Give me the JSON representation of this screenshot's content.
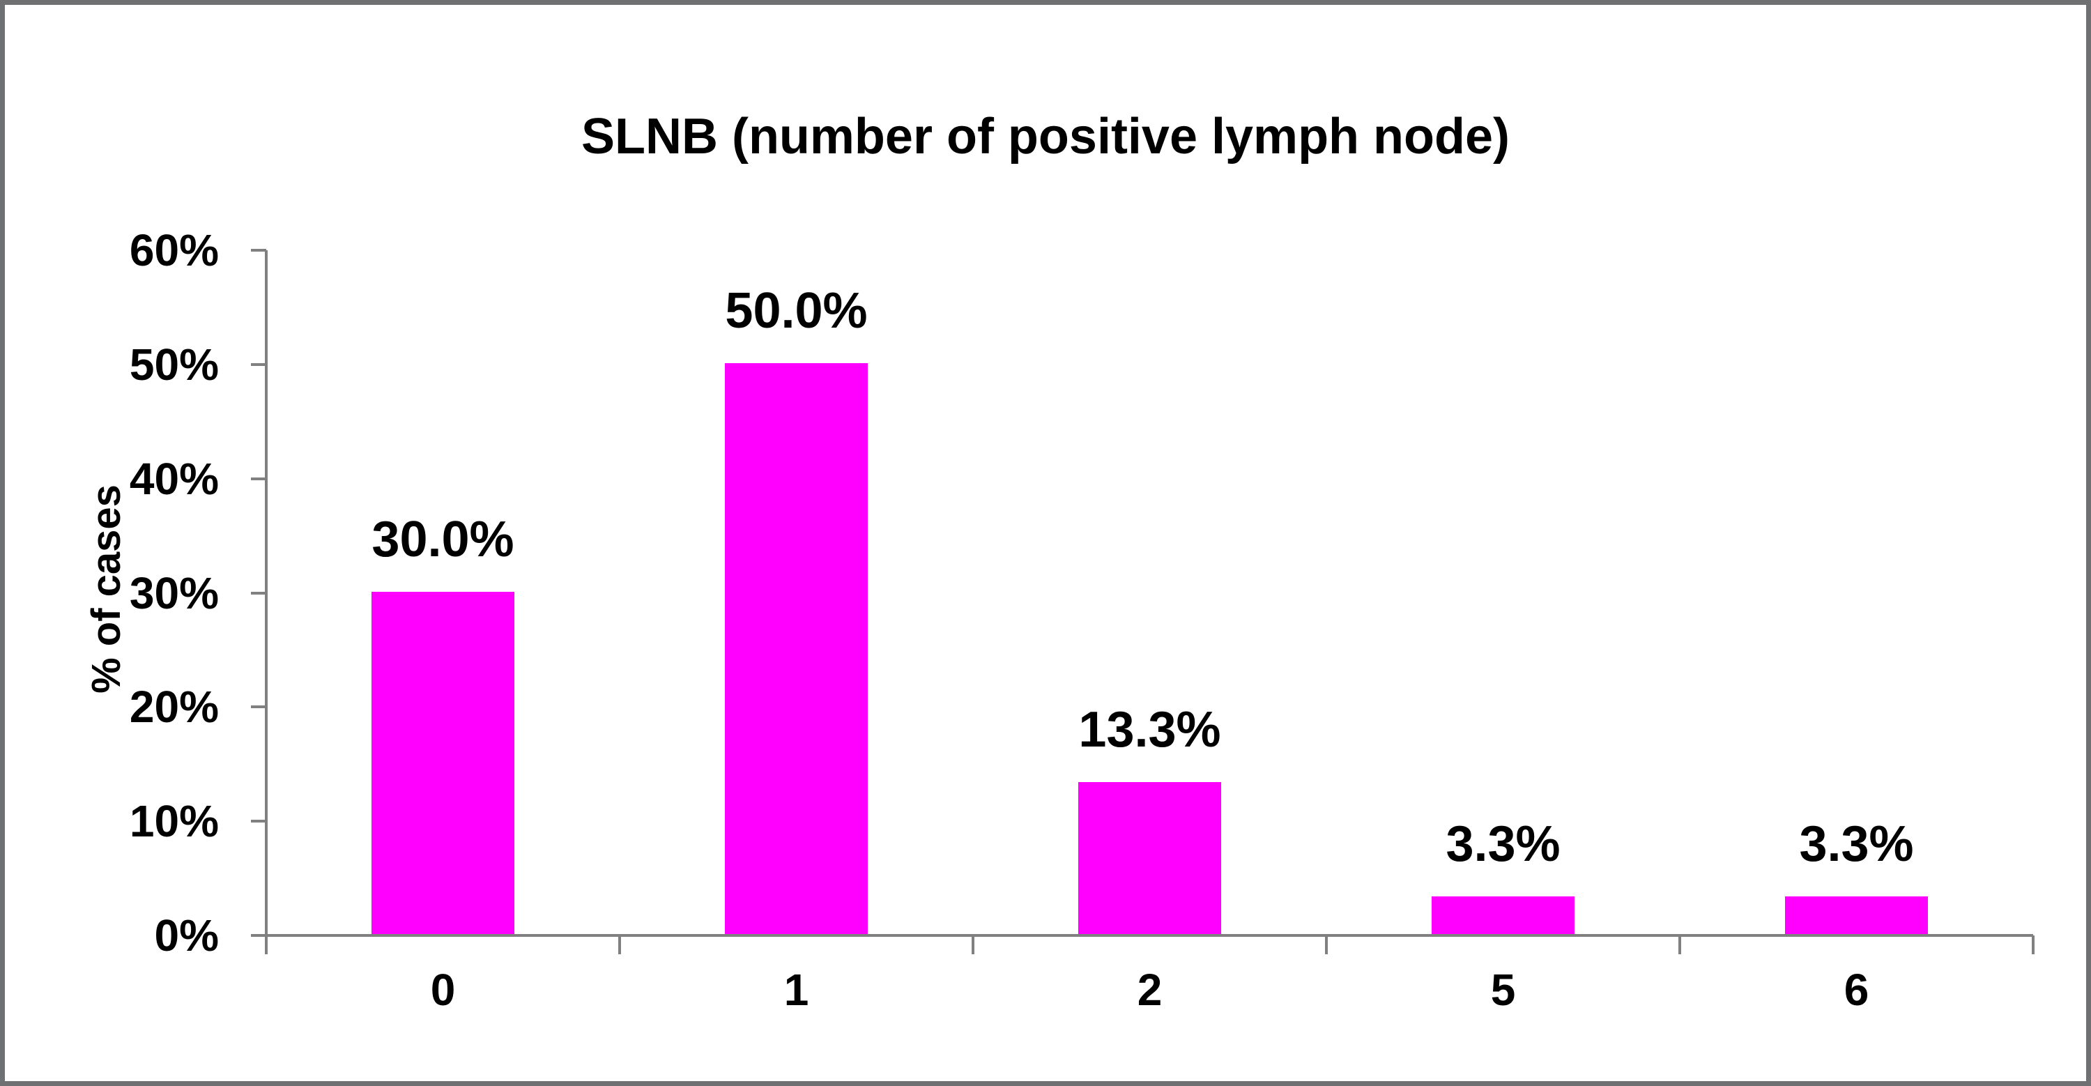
{
  "chart_data": {
    "type": "bar",
    "title": "SLNB (number of positive lymph node)",
    "xlabel": "",
    "ylabel": "% of cases",
    "categories": [
      "0",
      "1",
      "2",
      "5",
      "6"
    ],
    "values": [
      30.0,
      50.0,
      13.3,
      3.3,
      3.3
    ],
    "data_labels": [
      "30.0%",
      "50.0%",
      "13.3%",
      "3.3%",
      "3.3%"
    ],
    "ylim": [
      0,
      60
    ],
    "ytick_step": 10,
    "ytick_labels": [
      "0%",
      "10%",
      "20%",
      "30%",
      "40%",
      "50%",
      "60%"
    ],
    "grid": "off",
    "legend": "none",
    "colors": {
      "bar": "#FF00FF",
      "axis": "#808080",
      "text": "#000000",
      "figure_border": "#6F7072",
      "background": "#FFFFFF"
    }
  }
}
